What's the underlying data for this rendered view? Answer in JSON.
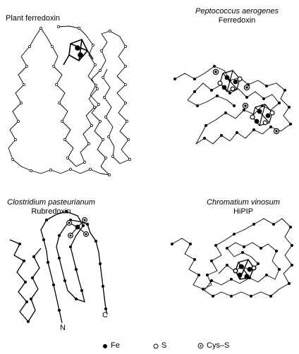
{
  "panels": {
    "plant": {
      "title": "Plant ferredoxin"
    },
    "pepto": {
      "species": "Peptococcus aerogenes",
      "protein": "Ferredoxin"
    },
    "clostridium": {
      "species": "Clostridium pasteurianum",
      "protein": "Rubredoxin",
      "n_label": "N",
      "c_label": "C"
    },
    "chromatium": {
      "species": "Chromatium vinosum",
      "protein": "HiPIP"
    }
  },
  "legend": {
    "fe": "Fe",
    "s": "S",
    "cys": "Cys–S"
  },
  "colors": {
    "ink": "#000000",
    "paper": "#ffffff"
  }
}
